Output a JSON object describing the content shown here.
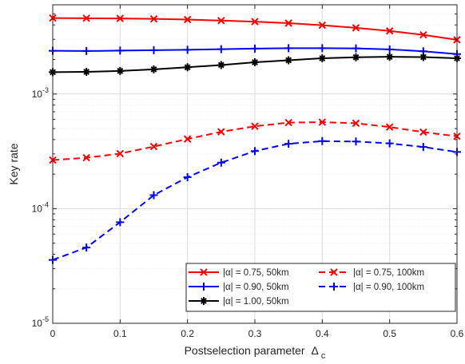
{
  "chart_data": {
    "type": "line",
    "title": "",
    "xlabel": "Postselection parameter",
    "xlabel_symbol": "Δ",
    "xlabel_subscript": "c",
    "ylabel": "Key rate",
    "xlim": [
      0,
      0.6
    ],
    "ylim": [
      1e-05,
      0.006
    ],
    "yscale": "log",
    "grid": true,
    "legend_position": "bottom-right",
    "x_ticks": [
      "0",
      "0.1",
      "0.2",
      "0.3",
      "0.4",
      "0.5",
      "0.6"
    ],
    "y_ticks": [
      {
        "base": "10",
        "exp": "-5"
      },
      {
        "base": "10",
        "exp": "-4"
      },
      {
        "base": "10",
        "exp": "-3"
      }
    ],
    "x": [
      0,
      0.05,
      0.1,
      0.15,
      0.2,
      0.25,
      0.3,
      0.35,
      0.4,
      0.45,
      0.5,
      0.55,
      0.6
    ],
    "series": [
      {
        "name": "|α| = 0.75, 50km",
        "color": "#ff0000",
        "line": "solid",
        "marker": "x",
        "values": [
          0.0046,
          0.00458,
          0.00456,
          0.00452,
          0.00446,
          0.00437,
          0.00428,
          0.00415,
          0.00398,
          0.00378,
          0.00355,
          0.00328,
          0.00297
        ]
      },
      {
        "name": "|α| = 0.90, 50km",
        "color": "#0000ff",
        "line": "solid",
        "marker": "+",
        "values": [
          0.00238,
          0.00237,
          0.00239,
          0.00241,
          0.00243,
          0.00246,
          0.00249,
          0.00251,
          0.00251,
          0.0025,
          0.00245,
          0.00236,
          0.00223
        ]
      },
      {
        "name": "|α| = 1.00, 50km",
        "color": "#000000",
        "line": "solid",
        "marker": "*",
        "values": [
          0.00155,
          0.00156,
          0.00159,
          0.00164,
          0.00171,
          0.00179,
          0.00189,
          0.00197,
          0.00205,
          0.00209,
          0.00211,
          0.0021,
          0.00205
        ]
      },
      {
        "name": "|α| = 0.75, 100km",
        "color": "#ff0000",
        "line": "dashed",
        "marker": "x",
        "values": [
          0.000265,
          0.000278,
          0.000302,
          0.000348,
          0.000405,
          0.000468,
          0.000523,
          0.000563,
          0.000568,
          0.000556,
          0.000515,
          0.000465,
          0.000428
        ]
      },
      {
        "name": "|α| = 0.90, 100km",
        "color": "#0000ff",
        "line": "dashed",
        "marker": "+",
        "values": [
          3.57e-05,
          4.58e-05,
          7.62e-05,
          0.000131,
          0.000188,
          0.000252,
          0.000318,
          0.000368,
          0.000388,
          0.000385,
          0.000371,
          0.000345,
          0.000312
        ]
      }
    ]
  }
}
